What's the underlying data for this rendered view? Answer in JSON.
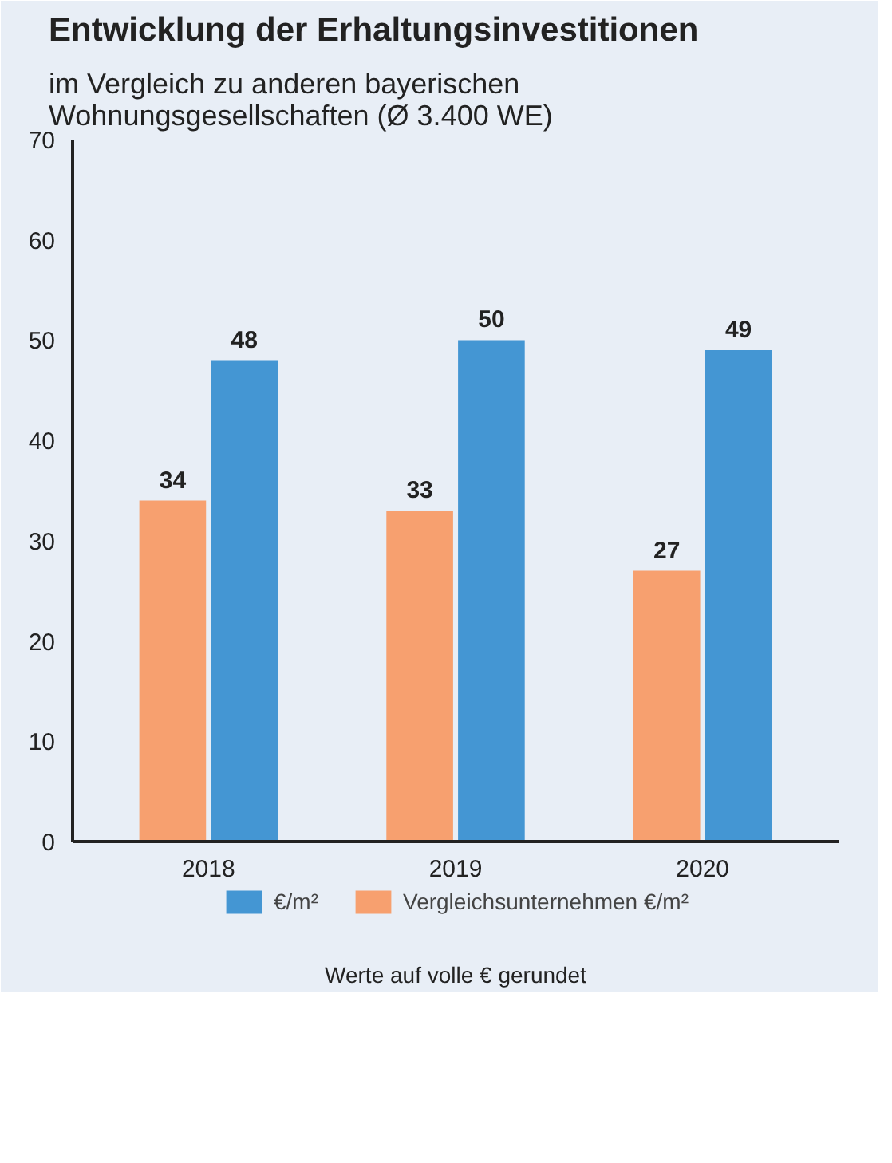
{
  "chart_data": {
    "type": "bar",
    "title": "Entwicklung der Erhaltungsinvestitionen",
    "subtitle": "im Vergleich zu anderen bayerischen Wohnungsgesellschaften (Ø 3.400 WE)",
    "categories": [
      "2018",
      "2019",
      "2020"
    ],
    "series": [
      {
        "name": "Vergleichsunternehmen €/m²",
        "color": "#f7a06f",
        "values": [
          34,
          33,
          27
        ]
      },
      {
        "name": "€/m²",
        "color": "#4496d3",
        "values": [
          48,
          50,
          49
        ]
      }
    ],
    "ylim": [
      0,
      70
    ],
    "yticks": [
      0,
      10,
      20,
      30,
      40,
      50,
      60,
      70
    ],
    "grid": false,
    "legend": "bottom",
    "data_labels": true,
    "annotations": [
      "Werte auf volle € gerundet"
    ]
  }
}
